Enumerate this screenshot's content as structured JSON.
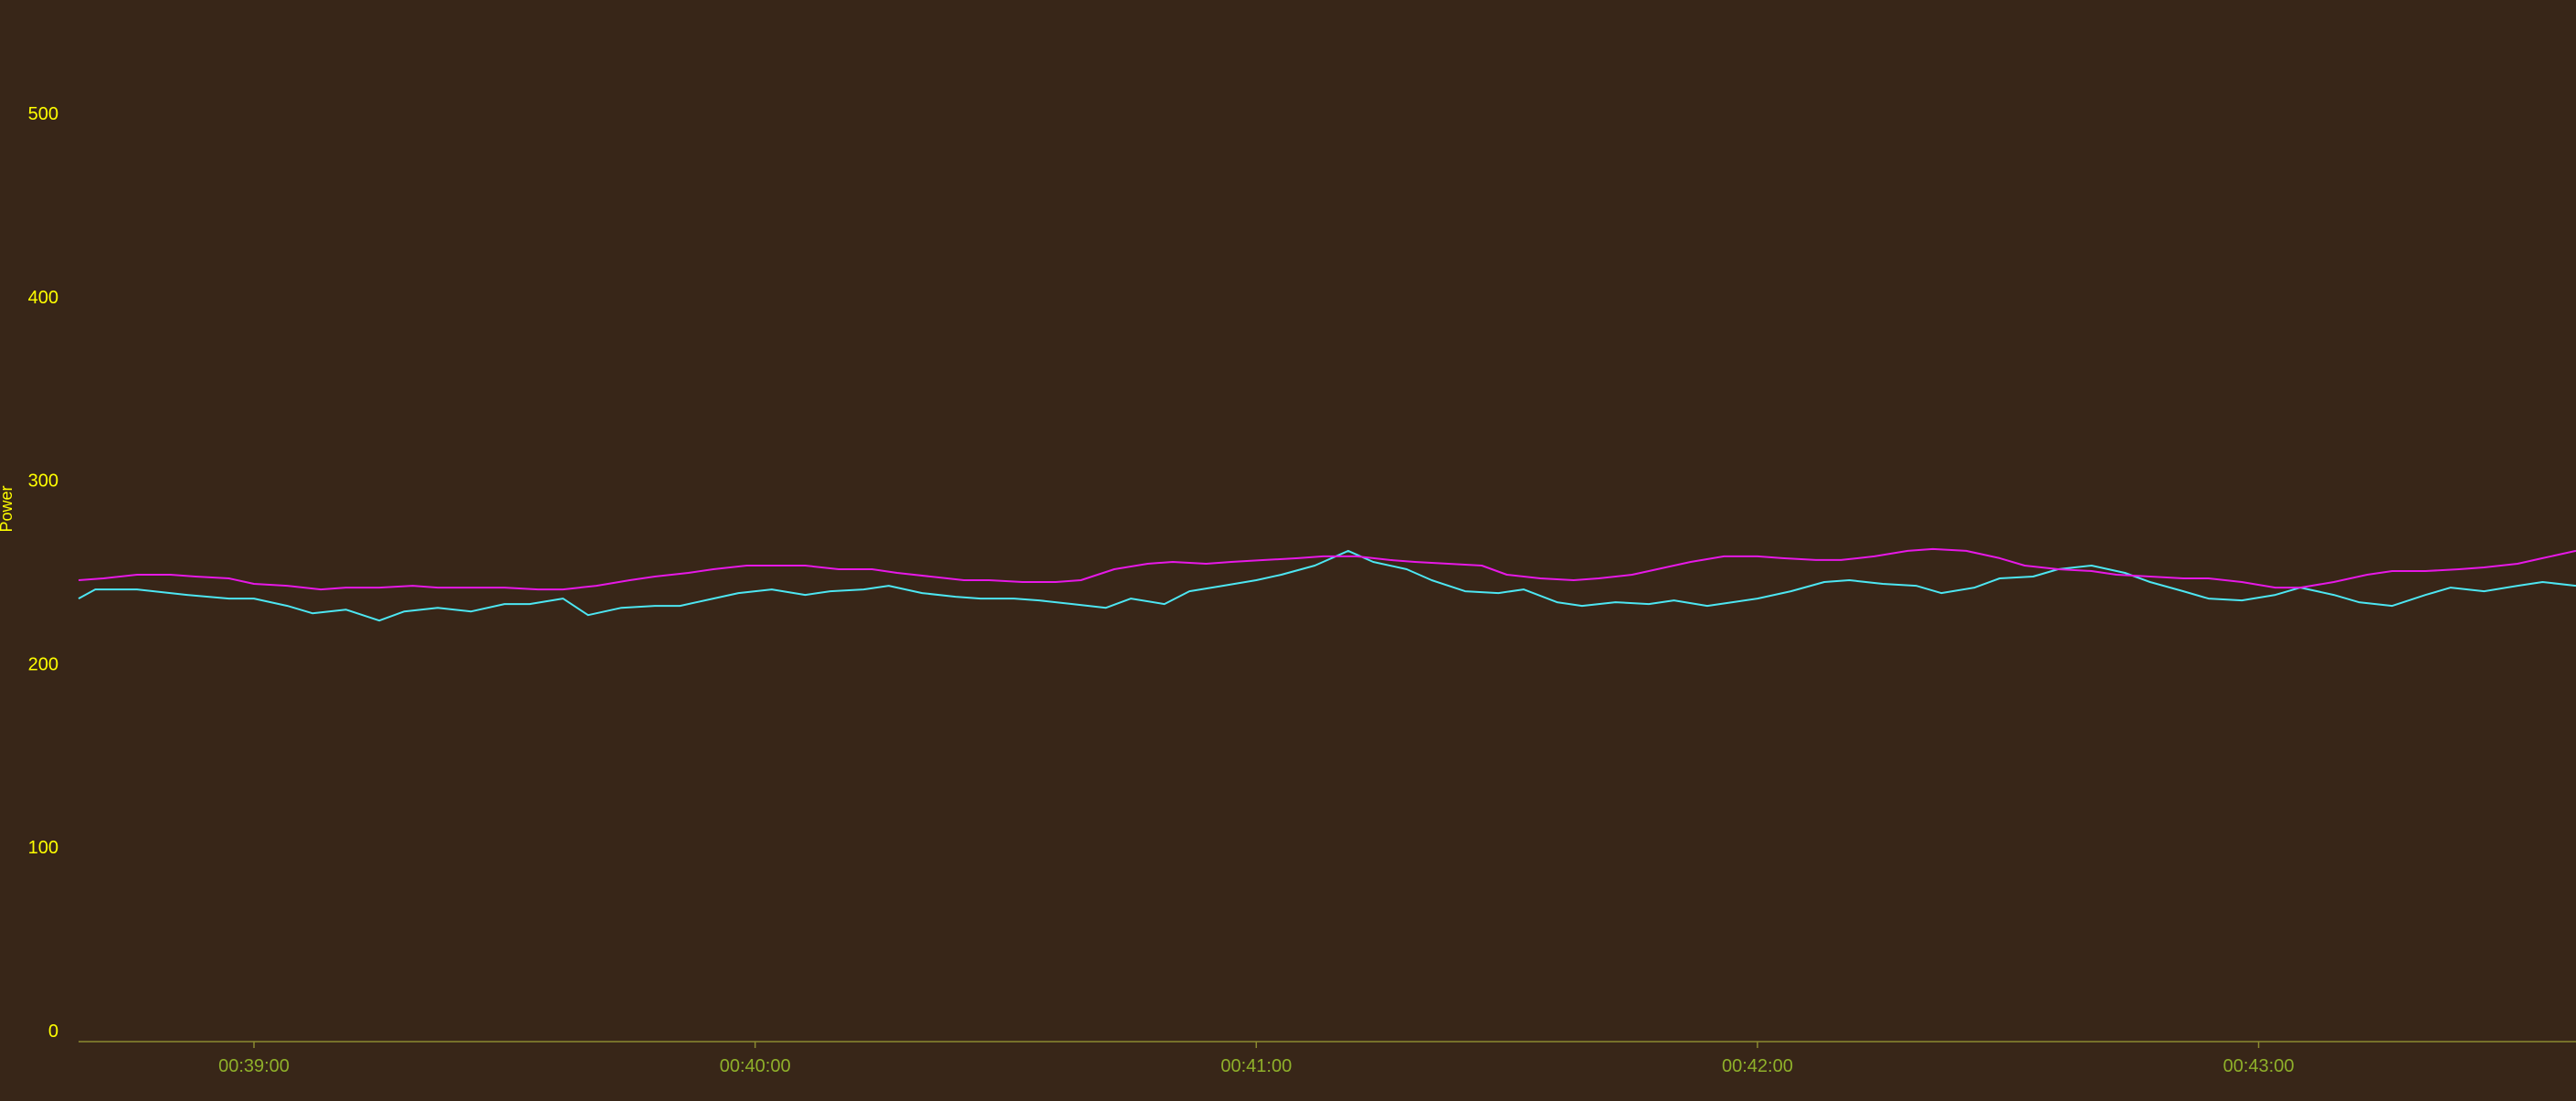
{
  "chart_data": {
    "type": "line",
    "ylabel": "Power",
    "xlabel": "",
    "title": "",
    "ylim": [
      0,
      560
    ],
    "xlim": [
      "00:38:39",
      "00:43:38"
    ],
    "y_ticks": [
      0,
      100,
      200,
      300,
      400,
      500
    ],
    "x_ticks": [
      "00:39:00",
      "00:40:00",
      "00:41:00",
      "00:42:00",
      "00:43:00"
    ],
    "grid": false,
    "legend": "none",
    "colors": {
      "background": "#382618",
      "y_axis_text": "#ffff00",
      "x_axis_text": "#8fb02a",
      "axis_line": "#8a8a30",
      "series_1": "#4de6f2",
      "series_2": "#e619e6"
    },
    "series": [
      {
        "color": "#4de6f2",
        "points": [
          [
            "00:38:39",
            236
          ],
          [
            "00:38:41",
            241
          ],
          [
            "00:38:46",
            241
          ],
          [
            "00:38:52",
            238
          ],
          [
            "00:38:57",
            236
          ],
          [
            "00:39:00",
            236
          ],
          [
            "00:39:04",
            232
          ],
          [
            "00:39:07",
            228
          ],
          [
            "00:39:11",
            230
          ],
          [
            "00:39:15",
            224
          ],
          [
            "00:39:18",
            229
          ],
          [
            "00:39:22",
            231
          ],
          [
            "00:39:26",
            229
          ],
          [
            "00:39:30",
            233
          ],
          [
            "00:39:33",
            233
          ],
          [
            "00:39:37",
            236
          ],
          [
            "00:39:40",
            227
          ],
          [
            "00:39:44",
            231
          ],
          [
            "00:39:48",
            232
          ],
          [
            "00:39:51",
            232
          ],
          [
            "00:39:55",
            236
          ],
          [
            "00:39:58",
            239
          ],
          [
            "00:40:02",
            241
          ],
          [
            "00:40:06",
            238
          ],
          [
            "00:40:09",
            240
          ],
          [
            "00:40:13",
            241
          ],
          [
            "00:40:16",
            243
          ],
          [
            "00:40:20",
            239
          ],
          [
            "00:40:24",
            237
          ],
          [
            "00:40:27",
            236
          ],
          [
            "00:40:31",
            236
          ],
          [
            "00:40:34",
            235
          ],
          [
            "00:40:38",
            233
          ],
          [
            "00:40:42",
            231
          ],
          [
            "00:40:45",
            236
          ],
          [
            "00:40:49",
            233
          ],
          [
            "00:40:52",
            240
          ],
          [
            "00:40:56",
            243
          ],
          [
            "00:41:00",
            246
          ],
          [
            "00:41:03",
            249
          ],
          [
            "00:41:07",
            254
          ],
          [
            "00:41:11",
            262
          ],
          [
            "00:41:14",
            256
          ],
          [
            "00:41:18",
            252
          ],
          [
            "00:41:21",
            246
          ],
          [
            "00:41:25",
            240
          ],
          [
            "00:41:29",
            239
          ],
          [
            "00:41:32",
            241
          ],
          [
            "00:41:36",
            234
          ],
          [
            "00:41:39",
            232
          ],
          [
            "00:41:43",
            234
          ],
          [
            "00:41:47",
            233
          ],
          [
            "00:41:50",
            235
          ],
          [
            "00:41:54",
            232
          ],
          [
            "00:41:57",
            234
          ],
          [
            "00:42:00",
            236
          ],
          [
            "00:42:04",
            240
          ],
          [
            "00:42:08",
            245
          ],
          [
            "00:42:11",
            246
          ],
          [
            "00:42:15",
            244
          ],
          [
            "00:42:19",
            243
          ],
          [
            "00:42:22",
            239
          ],
          [
            "00:42:26",
            242
          ],
          [
            "00:42:29",
            247
          ],
          [
            "00:42:33",
            248
          ],
          [
            "00:42:36",
            252
          ],
          [
            "00:42:40",
            254
          ],
          [
            "00:42:44",
            250
          ],
          [
            "00:42:47",
            245
          ],
          [
            "00:42:51",
            240
          ],
          [
            "00:42:54",
            236
          ],
          [
            "00:42:58",
            235
          ],
          [
            "00:43:02",
            238
          ],
          [
            "00:43:05",
            242
          ],
          [
            "00:43:09",
            238
          ],
          [
            "00:43:12",
            234
          ],
          [
            "00:43:16",
            232
          ],
          [
            "00:43:20",
            238
          ],
          [
            "00:43:23",
            242
          ],
          [
            "00:43:27",
            240
          ],
          [
            "00:43:31",
            243
          ],
          [
            "00:43:34",
            245
          ],
          [
            "00:43:38",
            243
          ]
        ]
      },
      {
        "color": "#e619e6",
        "points": [
          [
            "00:38:39",
            246
          ],
          [
            "00:38:42",
            247
          ],
          [
            "00:38:46",
            249
          ],
          [
            "00:38:50",
            249
          ],
          [
            "00:38:53",
            248
          ],
          [
            "00:38:57",
            247
          ],
          [
            "00:39:00",
            244
          ],
          [
            "00:39:04",
            243
          ],
          [
            "00:39:08",
            241
          ],
          [
            "00:39:11",
            242
          ],
          [
            "00:39:15",
            242
          ],
          [
            "00:39:19",
            243
          ],
          [
            "00:39:22",
            242
          ],
          [
            "00:39:26",
            242
          ],
          [
            "00:39:30",
            242
          ],
          [
            "00:39:34",
            241
          ],
          [
            "00:39:37",
            241
          ],
          [
            "00:39:41",
            243
          ],
          [
            "00:39:45",
            246
          ],
          [
            "00:39:48",
            248
          ],
          [
            "00:39:52",
            250
          ],
          [
            "00:39:55",
            252
          ],
          [
            "00:39:59",
            254
          ],
          [
            "00:40:03",
            254
          ],
          [
            "00:40:06",
            254
          ],
          [
            "00:40:10",
            252
          ],
          [
            "00:40:14",
            252
          ],
          [
            "00:40:17",
            250
          ],
          [
            "00:40:21",
            248
          ],
          [
            "00:40:25",
            246
          ],
          [
            "00:40:28",
            246
          ],
          [
            "00:40:32",
            245
          ],
          [
            "00:40:36",
            245
          ],
          [
            "00:40:39",
            246
          ],
          [
            "00:40:43",
            252
          ],
          [
            "00:40:47",
            255
          ],
          [
            "00:40:50",
            256
          ],
          [
            "00:40:54",
            255
          ],
          [
            "00:40:57",
            256
          ],
          [
            "00:41:01",
            257
          ],
          [
            "00:41:05",
            258
          ],
          [
            "00:41:08",
            259
          ],
          [
            "00:41:12",
            259
          ],
          [
            "00:41:16",
            257
          ],
          [
            "00:41:19",
            256
          ],
          [
            "00:41:23",
            255
          ],
          [
            "00:41:27",
            254
          ],
          [
            "00:41:30",
            249
          ],
          [
            "00:41:34",
            247
          ],
          [
            "00:41:38",
            246
          ],
          [
            "00:41:41",
            247
          ],
          [
            "00:41:45",
            249
          ],
          [
            "00:41:49",
            253
          ],
          [
            "00:41:52",
            256
          ],
          [
            "00:41:56",
            259
          ],
          [
            "00:42:00",
            259
          ],
          [
            "00:42:03",
            258
          ],
          [
            "00:42:07",
            257
          ],
          [
            "00:42:10",
            257
          ],
          [
            "00:42:14",
            259
          ],
          [
            "00:42:18",
            262
          ],
          [
            "00:42:21",
            263
          ],
          [
            "00:42:25",
            262
          ],
          [
            "00:42:29",
            258
          ],
          [
            "00:42:32",
            254
          ],
          [
            "00:42:36",
            252
          ],
          [
            "00:42:40",
            251
          ],
          [
            "00:42:43",
            249
          ],
          [
            "00:42:47",
            248
          ],
          [
            "00:42:51",
            247
          ],
          [
            "00:42:54",
            247
          ],
          [
            "00:42:58",
            245
          ],
          [
            "00:43:02",
            242
          ],
          [
            "00:43:05",
            242
          ],
          [
            "00:43:09",
            245
          ],
          [
            "00:43:13",
            249
          ],
          [
            "00:43:16",
            251
          ],
          [
            "00:43:20",
            251
          ],
          [
            "00:43:24",
            252
          ],
          [
            "00:43:27",
            253
          ],
          [
            "00:43:31",
            255
          ],
          [
            "00:43:34",
            258
          ],
          [
            "00:43:38",
            262
          ]
        ]
      }
    ]
  }
}
